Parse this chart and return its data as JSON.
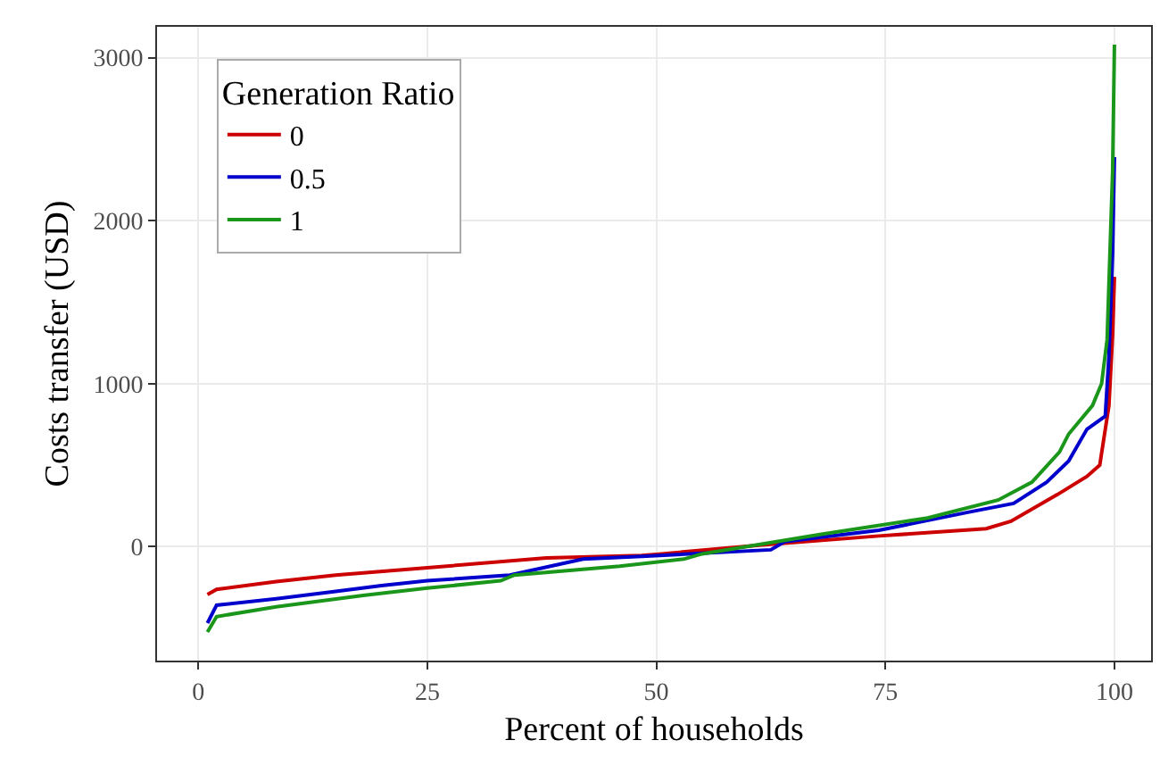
{
  "chart_data": {
    "type": "line",
    "xlabel": "Percent of households",
    "ylabel": "Costs transfer (USD)",
    "legend_title": "Generation Ratio",
    "legend": "top left",
    "grid": true,
    "xlim": [
      -4.5,
      104
    ],
    "xticks": [
      0,
      25,
      50,
      75,
      100
    ],
    "ylim": [
      -700,
      3190
    ],
    "yticks": [
      0,
      1000,
      2000,
      3000
    ],
    "series": [
      {
        "name": "0",
        "color": "#cc0000",
        "x": [
          1,
          2,
          8.5,
          15,
          25,
          38,
          48.4,
          50.6,
          61.5,
          74.3,
          86,
          88.7,
          93.8,
          97,
          98.4,
          99.4,
          99.8,
          100
        ],
        "values": [
          -295,
          -263,
          -215,
          -175,
          -130,
          -70,
          -55,
          -45,
          10,
          65,
          110,
          155,
          320,
          430,
          500,
          865,
          1300,
          1655
        ]
      },
      {
        "name": "0.5",
        "color": "#0000cc",
        "x": [
          1,
          2,
          8.5,
          15,
          20,
          25,
          34,
          42,
          48.4,
          62.5,
          64,
          74.3,
          84,
          89,
          92.6,
          95,
          97,
          99,
          99.4,
          99.8,
          100
        ],
        "values": [
          -470,
          -360,
          -320,
          -275,
          -240,
          -210,
          -175,
          -77,
          -60,
          -20,
          30,
          100,
          210,
          265,
          395,
          525,
          720,
          800,
          1170,
          1800,
          2390
        ]
      },
      {
        "name": "1",
        "color": "#1a961a",
        "x": [
          1,
          2,
          8.5,
          18,
          25,
          33,
          34.5,
          46,
          53,
          55,
          68,
          79.6,
          87.3,
          91,
          94,
          95,
          97.6,
          98.6,
          99.2,
          99.8,
          100
        ],
        "values": [
          -525,
          -430,
          -370,
          -300,
          -255,
          -210,
          -175,
          -120,
          -77,
          -45,
          75,
          175,
          285,
          395,
          580,
          690,
          865,
          1000,
          1270,
          2300,
          3080
        ]
      }
    ]
  }
}
